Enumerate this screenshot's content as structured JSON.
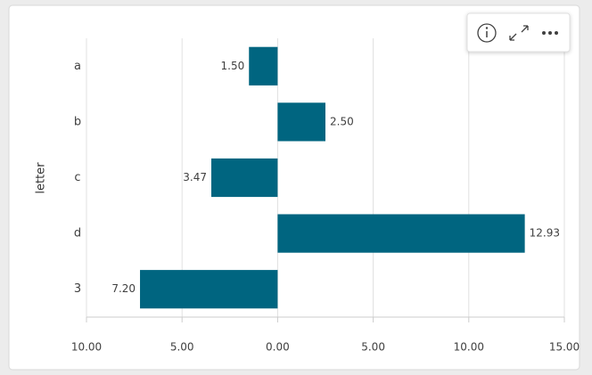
{
  "chart_data": {
    "type": "bar",
    "orientation": "horizontal",
    "y_label": "letter",
    "categories": [
      "a",
      "b",
      "c",
      "d",
      "3"
    ],
    "values": [
      -1.5,
      2.5,
      -3.47,
      12.93,
      -7.2
    ],
    "value_labels": [
      "1.50",
      "2.50",
      "3.47",
      "12.93",
      "7.20"
    ],
    "color": "#006580",
    "xlim": [
      -10,
      15
    ],
    "xticks": [
      {
        "value": -10,
        "label": "10.00"
      },
      {
        "value": -5,
        "label": "5.00"
      },
      {
        "value": 0,
        "label": "0.00"
      },
      {
        "value": 5,
        "label": "5.00"
      },
      {
        "value": 10,
        "label": "10.00"
      },
      {
        "value": 15,
        "label": "15.00"
      }
    ],
    "grid": true
  }
}
